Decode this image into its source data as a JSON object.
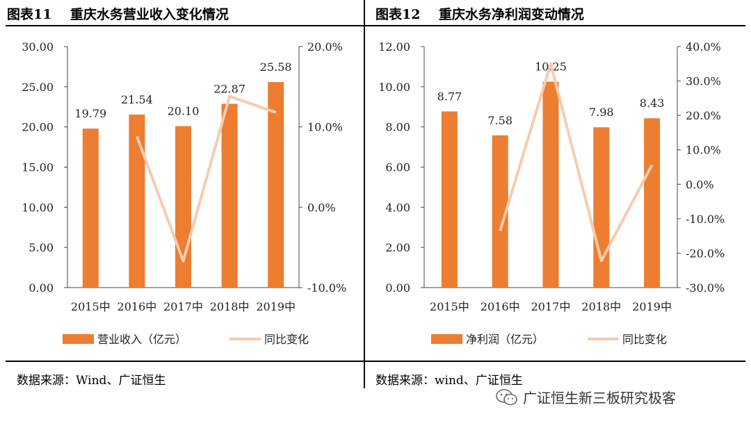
{
  "panels": [
    {
      "title": "图表11    重庆水务营业收入变化情况",
      "source": "数据来源：Wind、广证恒生"
    },
    {
      "title": "图表12    重庆水务净利润变动情况",
      "source": "数据来源：wind、广证恒生"
    }
  ],
  "footer": {
    "text": "广证恒生新三板研究极客",
    "icon": "wechat-icon"
  },
  "colors": {
    "bar": "#ED7D31",
    "line": "#F8CBAD"
  },
  "chart_data": [
    {
      "type": "bar",
      "categories": [
        "2015中",
        "2016中",
        "2017中",
        "2018中",
        "2019中"
      ],
      "series": [
        {
          "name": "营业收入（亿元）",
          "type": "bar",
          "axis": "left",
          "values": [
            19.79,
            21.54,
            20.1,
            22.87,
            25.58
          ],
          "labels": [
            "19.79",
            "21.54",
            "20.10",
            "22.87",
            "25.58"
          ]
        },
        {
          "name": "同比变化",
          "type": "line",
          "axis": "right",
          "values": [
            null,
            0.088,
            -0.067,
            0.138,
            0.118
          ]
        }
      ],
      "left_axis": {
        "ylim": [
          0,
          30
        ],
        "ticks": [
          "0.00",
          "5.00",
          "10.00",
          "15.00",
          "20.00",
          "25.00",
          "30.00"
        ]
      },
      "right_axis": {
        "ylim": [
          -0.1,
          0.2
        ],
        "ticks": [
          "-10.0%",
          "0.0%",
          "10.0%",
          "20.0%"
        ]
      },
      "legend": "bottom",
      "grid": false
    },
    {
      "type": "bar",
      "categories": [
        "2015中",
        "2016中",
        "2017中",
        "2018中",
        "2019中"
      ],
      "series": [
        {
          "name": "净利润（亿元）",
          "type": "bar",
          "axis": "left",
          "values": [
            8.77,
            7.58,
            10.25,
            7.98,
            8.43
          ],
          "labels": [
            "8.77",
            "7.58",
            "10.25",
            "7.98",
            "8.43"
          ]
        },
        {
          "name": "同比变化",
          "type": "line",
          "axis": "right",
          "values": [
            null,
            -0.135,
            0.35,
            -0.222,
            0.056
          ]
        }
      ],
      "left_axis": {
        "ylim": [
          0,
          12
        ],
        "ticks": [
          "0.00",
          "2.00",
          "4.00",
          "6.00",
          "8.00",
          "10.00",
          "12.00"
        ]
      },
      "right_axis": {
        "ylim": [
          -0.3,
          0.4
        ],
        "ticks": [
          "-30.0%",
          "-20.0%",
          "-10.0%",
          "0.0%",
          "10.0%",
          "20.0%",
          "30.0%",
          "40.0%"
        ]
      },
      "legend": "bottom",
      "grid": false
    }
  ]
}
